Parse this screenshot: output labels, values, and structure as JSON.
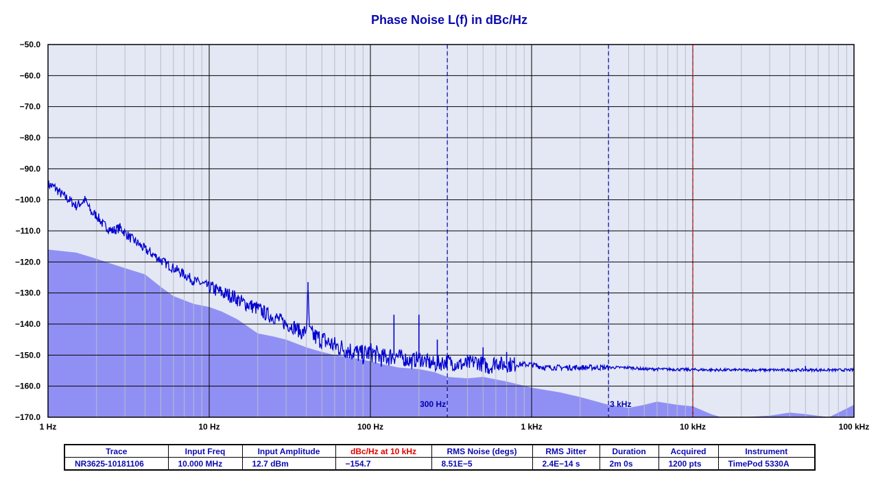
{
  "colors": {
    "title": "#0b0bb0",
    "plot_background": "#e4e8f4",
    "noise_floor_fill": "#9090f4",
    "trace": "#0000d0",
    "grid_major": "#000000",
    "grid_minor": "#b8bcc8",
    "marker_blue": "#0000b0",
    "marker_red": "#d00000",
    "table_text": "#0b0bb0",
    "table_header_highlight": "#e00000"
  },
  "chart_data": {
    "type": "line",
    "title": "Phase Noise L(f) in dBc/Hz",
    "xlabel": "",
    "ylabel": "",
    "x_scale": "log",
    "xlim": [
      1,
      100000
    ],
    "ylim": [
      -170,
      -50
    ],
    "grid": true,
    "x_tick_values": [
      1,
      10,
      100,
      1000,
      10000,
      100000
    ],
    "x_tick_labels": [
      "1 Hz",
      "10 Hz",
      "100 Hz",
      "1 kHz",
      "10 kHz",
      "100 kHz"
    ],
    "y_tick_values": [
      -50,
      -60,
      -70,
      -80,
      -90,
      -100,
      -110,
      -120,
      -130,
      -140,
      -150,
      -160,
      -170
    ],
    "y_tick_labels": [
      "-50.0",
      "-60.0",
      "-70.0",
      "-80.0",
      "-90.0",
      "-100.0",
      "-110.0",
      "-120.0",
      "-130.0",
      "-140.0",
      "-150.0",
      "-160.0",
      "-170.0"
    ],
    "markers": [
      {
        "x": 300,
        "label": "300 Hz",
        "color": "blue"
      },
      {
        "x": 3000,
        "label": "3 kHz",
        "color": "blue"
      },
      {
        "x": 10000,
        "label": "",
        "color": "red"
      }
    ],
    "series": [
      {
        "name": "NR3625-10181106",
        "kind": "line",
        "x": [
          1,
          1.1,
          1.2,
          1.35,
          1.5,
          1.7,
          1.85,
          2.0,
          2.2,
          2.5,
          2.8,
          3.2,
          3.6,
          4.0,
          4.6,
          5.2,
          6.0,
          7.0,
          8.0,
          9.0,
          10,
          12,
          14,
          16,
          18,
          20,
          23,
          26,
          30,
          34,
          38,
          40,
          41,
          42,
          45,
          50,
          55,
          60,
          70,
          80,
          90,
          100,
          110,
          120,
          140,
          160,
          180,
          200,
          220,
          250,
          300,
          350,
          400,
          450,
          500,
          550,
          600,
          650,
          700,
          800,
          900,
          1000,
          1200,
          1500,
          2000,
          2500,
          3000,
          4000,
          5000,
          6000,
          8000,
          10000,
          15000,
          20000,
          30000,
          40000,
          50000,
          60000,
          70000,
          80000,
          100000
        ],
        "y": [
          -95,
          -96,
          -98,
          -100,
          -102,
          -100,
          -104,
          -105,
          -108,
          -110,
          -109,
          -112,
          -114,
          -116,
          -118,
          -120,
          -122,
          -124,
          -126,
          -127,
          -128,
          -130,
          -131,
          -133,
          -134,
          -135,
          -137,
          -138,
          -140,
          -141,
          -143,
          -142,
          -130,
          -143,
          -144,
          -145,
          -146,
          -147,
          -148,
          -149,
          -150,
          -149,
          -150,
          -151,
          -150,
          -151,
          -152,
          -151,
          -152,
          -153,
          -152,
          -153,
          -153,
          -152,
          -153,
          -154,
          -152,
          -153,
          -153,
          -153,
          -153,
          -153,
          -154,
          -154,
          -154,
          -154,
          -154,
          -154,
          -154.5,
          -154.5,
          -154.6,
          -154.7,
          -154.8,
          -154.8,
          -154.8,
          -154.8,
          -154.8,
          -154.8,
          -154.8,
          -154.8,
          -154.8
        ],
        "spurs": [
          {
            "x": 41,
            "top": -126.5
          },
          {
            "x": 140,
            "top": -137
          },
          {
            "x": 200,
            "top": -137
          },
          {
            "x": 260,
            "top": -145
          },
          {
            "x": 400,
            "top": -150
          },
          {
            "x": 500,
            "top": -147.5
          },
          {
            "x": 700,
            "top": -149
          },
          {
            "x": 50000,
            "top": -153.5
          }
        ]
      },
      {
        "name": "noise floor",
        "kind": "area",
        "x": [
          1,
          1.5,
          2,
          3,
          4,
          5,
          6,
          8,
          10,
          12,
          15,
          20,
          25,
          30,
          40,
          50,
          60,
          80,
          100,
          120,
          150,
          200,
          250,
          300,
          400,
          500,
          700,
          1000,
          1500,
          2000,
          3000,
          4000,
          5000,
          6000,
          8000,
          10000,
          13000,
          15000,
          20000,
          30000,
          40000,
          50000,
          70000,
          100000
        ],
        "y": [
          -116,
          -117,
          -119,
          -122,
          -124,
          -128,
          -131,
          -133.5,
          -134.5,
          -136,
          -138.5,
          -143,
          -144,
          -145,
          -147.5,
          -149,
          -150,
          -151,
          -152,
          -153,
          -154,
          -154.5,
          -155.5,
          -157,
          -157.5,
          -157,
          -158.5,
          -160.5,
          -162,
          -163.5,
          -166,
          -167,
          -166,
          -165,
          -166,
          -166.5,
          -169,
          -170.5,
          -172,
          -169.5,
          -168.5,
          -169,
          -170,
          -166
        ]
      }
    ]
  },
  "table": {
    "headers": [
      "Trace",
      "Input Freq",
      "Input Amplitude",
      "dBc/Hz at 10 kHz",
      "RMS Noise (degs)",
      "RMS Jitter",
      "Duration",
      "Acquired",
      "Instrument"
    ],
    "values": [
      "NR3625-10181106",
      "10.000 MHz",
      "12.7 dBm",
      "−154.7",
      "8.51E−5",
      "2.4E−14 s",
      "2m 0s",
      "1200 pts",
      "TimePod 5330A"
    ]
  }
}
